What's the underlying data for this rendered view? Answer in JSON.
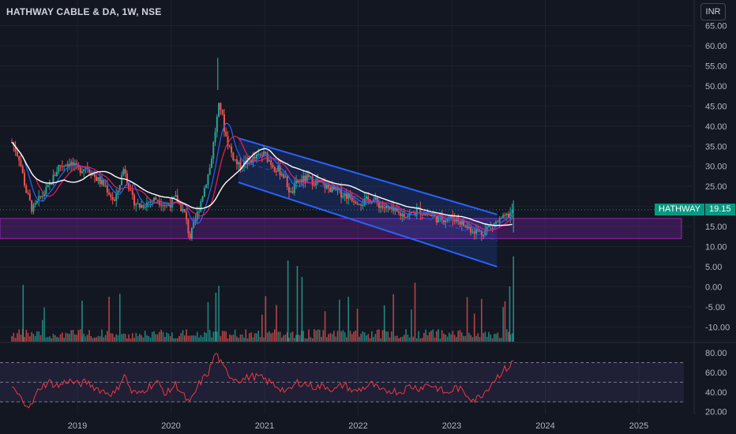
{
  "header": {
    "title": "HATHWAY CABLE & DA, 1W, NSE",
    "currency": "INR"
  },
  "price_label": {
    "symbol": "HATHWAY",
    "value": "19.15",
    "color": "#089981"
  },
  "colors": {
    "background": "#131722",
    "up": "#26a69a",
    "down": "#ef5350",
    "channel": "#2962ff",
    "zone": "#7b1fa2",
    "ma_long": "#ffffff",
    "ma_short": "#e91e63",
    "ma_blue": "#2962ff",
    "rsi": "#f23645"
  },
  "chart_data": [
    {
      "type": "candlestick",
      "title": "HATHWAY CABLE & DA, 1W, NSE",
      "x_ticks": [
        "2019",
        "2020",
        "2021",
        "2022",
        "2023",
        "2024",
        "2025"
      ],
      "y_ticks": [
        "65.00",
        "60.00",
        "55.00",
        "50.00",
        "45.00",
        "40.00",
        "35.00",
        "30.00",
        "25.00",
        "20.00",
        "15.00",
        "10.00",
        "5.00",
        "0.00",
        "-5.00",
        "-10.00"
      ],
      "ylim": [
        -13,
        67
      ],
      "xlim": [
        2018.3,
        2025.6
      ],
      "last_price": 19.15,
      "price_path": [
        [
          2018.3,
          36
        ],
        [
          2018.38,
          32
        ],
        [
          2018.45,
          24
        ],
        [
          2018.52,
          19
        ],
        [
          2018.6,
          22
        ],
        [
          2018.7,
          25
        ],
        [
          2018.8,
          30
        ],
        [
          2018.92,
          31
        ],
        [
          2019.0,
          29
        ],
        [
          2019.1,
          30
        ],
        [
          2019.2,
          27
        ],
        [
          2019.3,
          25
        ],
        [
          2019.4,
          21
        ],
        [
          2019.5,
          30
        ],
        [
          2019.58,
          22
        ],
        [
          2019.66,
          20
        ],
        [
          2019.75,
          21
        ],
        [
          2019.85,
          22
        ],
        [
          2019.95,
          20
        ],
        [
          2020.05,
          22
        ],
        [
          2020.15,
          18
        ],
        [
          2020.2,
          12
        ],
        [
          2020.28,
          18
        ],
        [
          2020.35,
          24
        ],
        [
          2020.42,
          30
        ],
        [
          2020.48,
          40
        ],
        [
          2020.52,
          46
        ],
        [
          2020.58,
          38
        ],
        [
          2020.65,
          33
        ],
        [
          2020.72,
          30
        ],
        [
          2020.8,
          31
        ],
        [
          2020.9,
          32
        ],
        [
          2021.0,
          33
        ],
        [
          2021.1,
          30
        ],
        [
          2021.2,
          28
        ],
        [
          2021.28,
          23
        ],
        [
          2021.35,
          26
        ],
        [
          2021.45,
          27
        ],
        [
          2021.55,
          26
        ],
        [
          2021.65,
          25
        ],
        [
          2021.75,
          24
        ],
        [
          2021.85,
          23
        ],
        [
          2021.95,
          22
        ],
        [
          2022.05,
          21
        ],
        [
          2022.15,
          22
        ],
        [
          2022.25,
          20
        ],
        [
          2022.35,
          19
        ],
        [
          2022.45,
          18
        ],
        [
          2022.55,
          18
        ],
        [
          2022.65,
          19
        ],
        [
          2022.75,
          18
        ],
        [
          2022.85,
          17
        ],
        [
          2022.95,
          17
        ],
        [
          2023.05,
          17
        ],
        [
          2023.15,
          15
        ],
        [
          2023.25,
          14
        ],
        [
          2023.32,
          13.5
        ],
        [
          2023.4,
          15
        ],
        [
          2023.48,
          16
        ],
        [
          2023.56,
          17
        ],
        [
          2023.62,
          18
        ],
        [
          2023.66,
          19.15
        ]
      ],
      "channel": {
        "upper": [
          [
            2020.72,
            37
          ],
          [
            2023.4,
            18
          ]
        ],
        "lower": [
          [
            2020.72,
            26
          ],
          [
            2023.4,
            5
          ]
        ]
      },
      "demand_zone": {
        "y_low": 12,
        "y_high": 17,
        "x_start": 2018.3,
        "x_end": 2025.55
      }
    },
    {
      "type": "bar",
      "title": "Volume",
      "series": [
        {
          "values": "weekly volume bars",
          "color_up": "#26a69a",
          "color_down": "#ef5350"
        }
      ]
    },
    {
      "type": "line",
      "title": "RSI",
      "y_ticks": [
        "80.00",
        "60.00",
        "40.00",
        "20.00"
      ],
      "ylim": [
        18,
        85
      ],
      "bands": [
        70,
        50,
        30
      ],
      "series": [
        {
          "values": [
            [
              2018.3,
              45
            ],
            [
              2018.4,
              33
            ],
            [
              2018.5,
              25
            ],
            [
              2018.6,
              45
            ],
            [
              2018.7,
              50
            ],
            [
              2018.8,
              46
            ],
            [
              2018.9,
              52
            ],
            [
              2019.0,
              48
            ],
            [
              2019.1,
              50
            ],
            [
              2019.2,
              44
            ],
            [
              2019.3,
              40
            ],
            [
              2019.4,
              38
            ],
            [
              2019.5,
              58
            ],
            [
              2019.58,
              40
            ],
            [
              2019.66,
              38
            ],
            [
              2019.75,
              45
            ],
            [
              2019.85,
              50
            ],
            [
              2019.95,
              38
            ],
            [
              2020.05,
              48
            ],
            [
              2020.12,
              38
            ],
            [
              2020.2,
              28
            ],
            [
              2020.3,
              48
            ],
            [
              2020.4,
              60
            ],
            [
              2020.48,
              80
            ],
            [
              2020.55,
              66
            ],
            [
              2020.65,
              55
            ],
            [
              2020.75,
              52
            ],
            [
              2020.85,
              56
            ],
            [
              2020.95,
              55
            ],
            [
              2021.05,
              50
            ],
            [
              2021.15,
              45
            ],
            [
              2021.25,
              40
            ],
            [
              2021.35,
              50
            ],
            [
              2021.45,
              48
            ],
            [
              2021.55,
              45
            ],
            [
              2021.65,
              46
            ],
            [
              2021.75,
              42
            ],
            [
              2021.85,
              48
            ],
            [
              2021.95,
              40
            ],
            [
              2022.05,
              44
            ],
            [
              2022.15,
              48
            ],
            [
              2022.25,
              40
            ],
            [
              2022.35,
              42
            ],
            [
              2022.45,
              40
            ],
            [
              2022.55,
              46
            ],
            [
              2022.65,
              44
            ],
            [
              2022.75,
              48
            ],
            [
              2022.85,
              44
            ],
            [
              2022.95,
              38
            ],
            [
              2023.05,
              45
            ],
            [
              2023.15,
              38
            ],
            [
              2023.25,
              32
            ],
            [
              2023.35,
              40
            ],
            [
              2023.45,
              52
            ],
            [
              2023.55,
              62
            ],
            [
              2023.62,
              66
            ],
            [
              2023.66,
              72
            ]
          ]
        }
      ]
    }
  ]
}
